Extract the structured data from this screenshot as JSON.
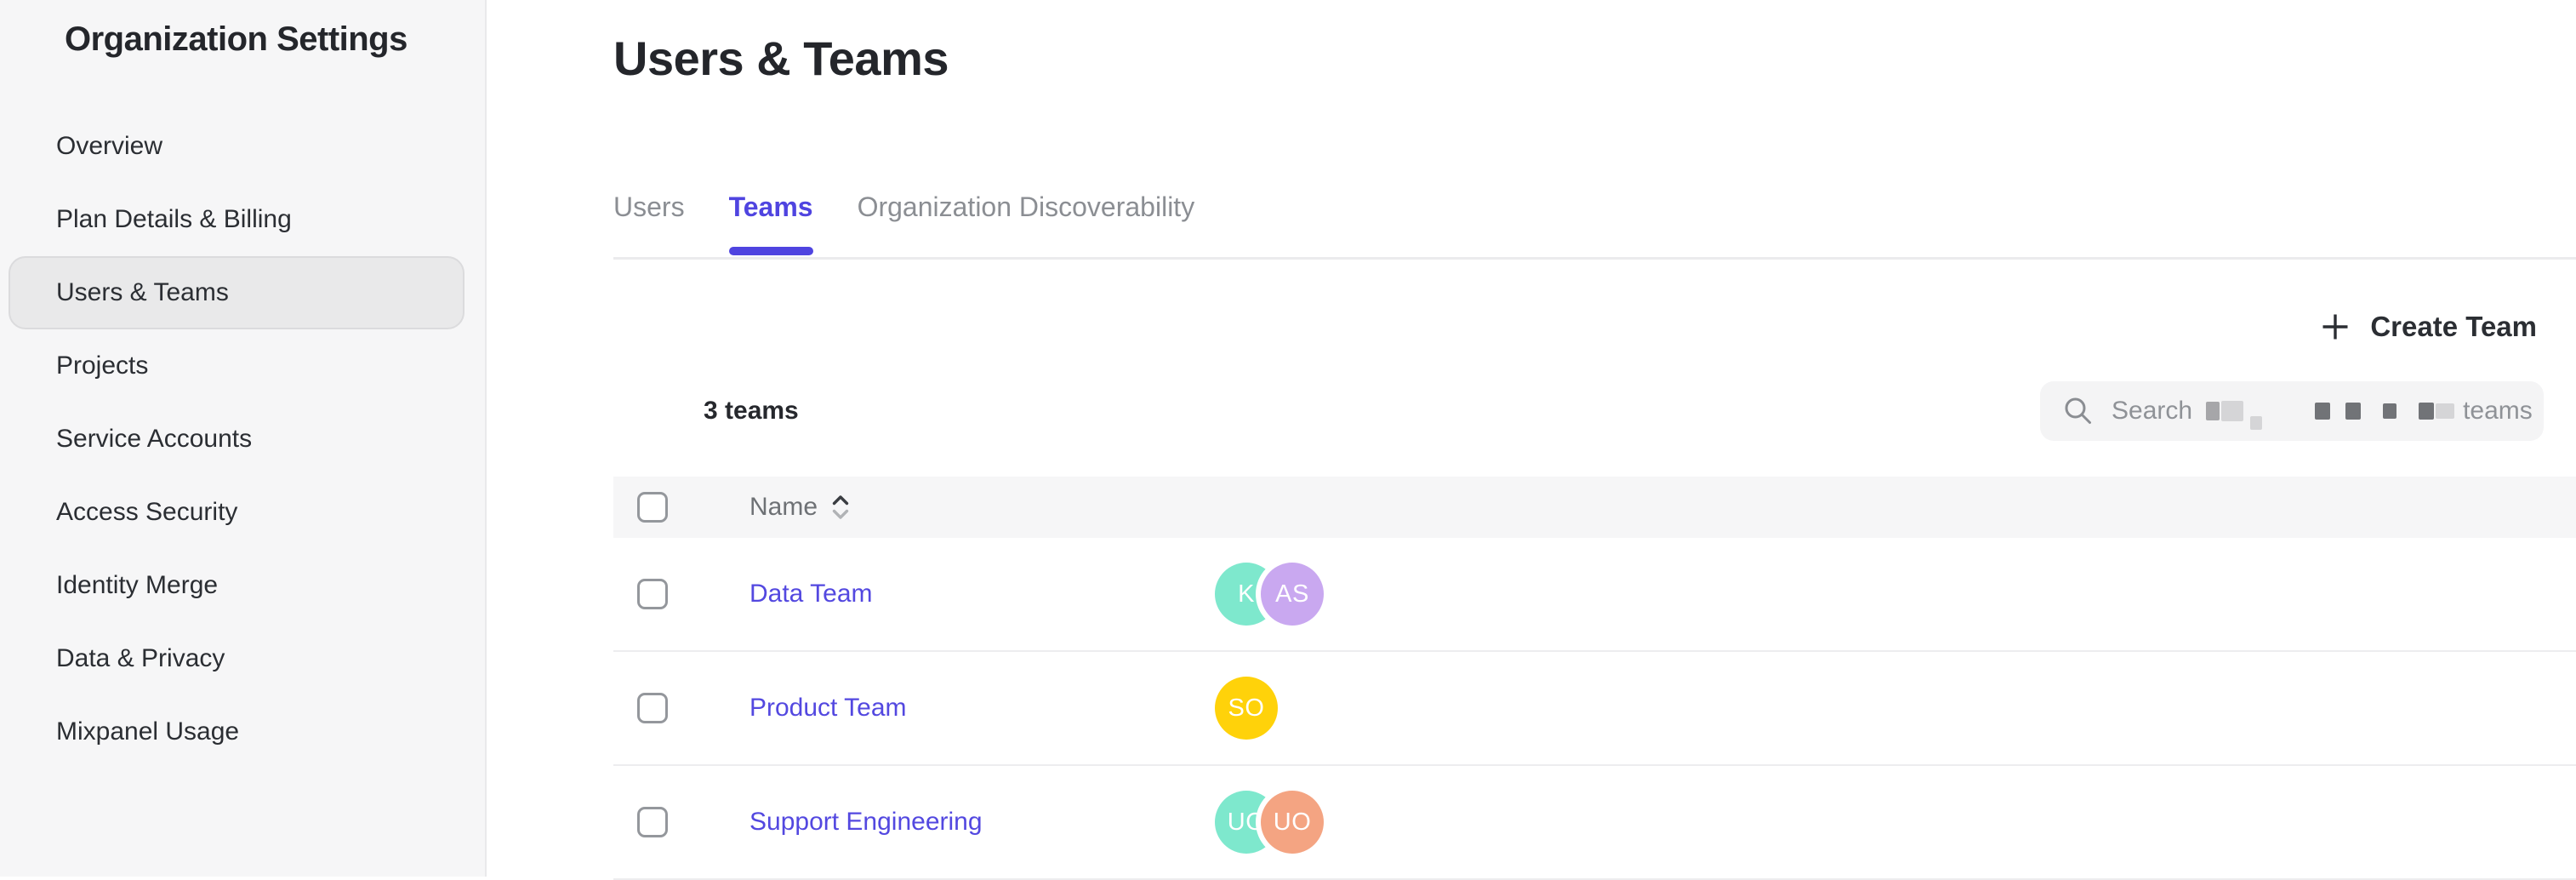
{
  "sidebar": {
    "title": "Organization Settings",
    "items": [
      {
        "id": "overview",
        "label": "Overview",
        "selected": false
      },
      {
        "id": "plan-details-billing",
        "label": "Plan Details & Billing",
        "selected": false
      },
      {
        "id": "users-teams",
        "label": "Users & Teams",
        "selected": true
      },
      {
        "id": "projects",
        "label": "Projects",
        "selected": false
      },
      {
        "id": "service-accounts",
        "label": "Service Accounts",
        "selected": false
      },
      {
        "id": "access-security",
        "label": "Access Security",
        "selected": false
      },
      {
        "id": "identity-merge",
        "label": "Identity Merge",
        "selected": false
      },
      {
        "id": "data-privacy",
        "label": "Data & Privacy",
        "selected": false
      },
      {
        "id": "mixpanel-usage",
        "label": "Mixpanel Usage",
        "selected": false
      }
    ]
  },
  "main": {
    "title": "Users & Teams",
    "tabs": [
      {
        "id": "users",
        "label": "Users",
        "active": false
      },
      {
        "id": "teams",
        "label": "Teams",
        "active": true
      },
      {
        "id": "organization-discoverability",
        "label": "Organization Discoverability",
        "active": false
      }
    ],
    "create_team": {
      "label": "Create Team",
      "icon": "plus-icon"
    },
    "teams_count": "3 teams",
    "search": {
      "prefix": "Search",
      "suffix": "teams",
      "icon": "search-icon",
      "redacted_blocks": [
        {
          "w": 16,
          "h": 22,
          "tone": "mid",
          "drop": 0,
          "ml": 16
        },
        {
          "w": 26,
          "h": 24,
          "tone": "light",
          "drop": 0,
          "ml": 2
        },
        {
          "w": 14,
          "h": 16,
          "tone": "light",
          "drop": 14,
          "ml": 8
        },
        {
          "w": 18,
          "h": 20,
          "tone": "dark",
          "drop": 0,
          "ml": 62
        },
        {
          "w": 18,
          "h": 20,
          "tone": "dark",
          "drop": 0,
          "ml": 18
        },
        {
          "w": 16,
          "h": 18,
          "tone": "dark",
          "drop": 0,
          "ml": 26
        },
        {
          "w": 18,
          "h": 20,
          "tone": "dark",
          "drop": 0,
          "ml": 26
        },
        {
          "w": 22,
          "h": 18,
          "tone": "light",
          "drop": 0,
          "ml": 2
        }
      ]
    }
  },
  "table": {
    "columns": [
      {
        "label": "Name",
        "sortable": true
      }
    ],
    "rows": [
      {
        "team": "Data Team",
        "avatars": [
          {
            "initials": "K",
            "color": "#7ee8cd"
          },
          {
            "initials": "AS",
            "color": "#c9a8f0"
          }
        ]
      },
      {
        "team": "Product Team",
        "avatars": [
          {
            "initials": "SO",
            "color": "#ffd20a"
          }
        ]
      },
      {
        "team": "Support Engineering",
        "avatars": [
          {
            "initials": "UO",
            "color": "#7ee8cd"
          },
          {
            "initials": "UO",
            "color": "#f4a482"
          }
        ]
      }
    ]
  },
  "colors": {
    "accent": "#4f44e0",
    "link": "#5348e0",
    "sidebar_bg": "#f6f6f7",
    "selected_item_bg": "#e9e9ea",
    "table_header_bg": "#f6f6f7",
    "text_dark": "#24262b",
    "text_gray": "#8b8e93"
  }
}
